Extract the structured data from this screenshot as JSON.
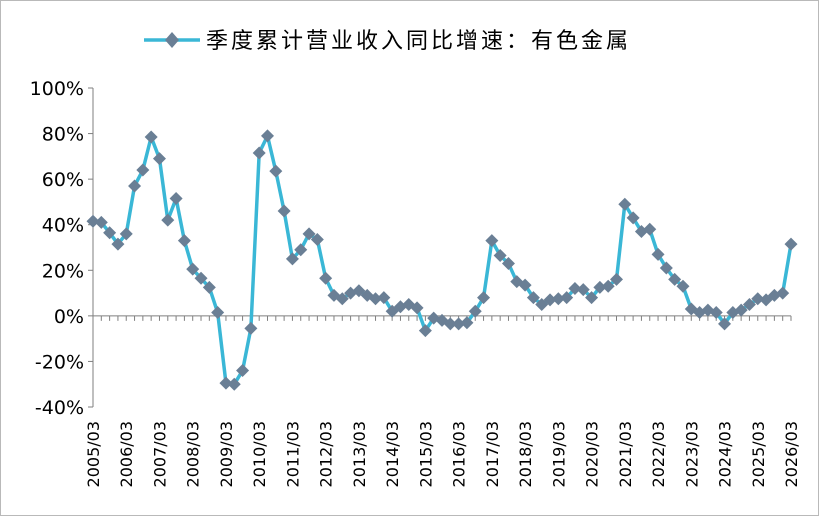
{
  "chart_data": {
    "type": "line",
    "title": "",
    "xlabel": "",
    "ylabel": "",
    "grid": false,
    "legend_position": "top-center",
    "ylim": [
      -40,
      100
    ],
    "y_ticks": [
      "100%",
      "80%",
      "60%",
      "40%",
      "20%",
      "0%",
      "-20%",
      "-40%"
    ],
    "y_tick_values": [
      100,
      80,
      60,
      40,
      20,
      0,
      -20,
      -40
    ],
    "x_ticks": [
      "2005/03",
      "2006/03",
      "2007/03",
      "2008/03",
      "2009/03",
      "2010/03",
      "2011/03",
      "2012/03",
      "2013/03",
      "2014/03",
      "2015/03",
      "2016/03",
      "2017/03",
      "2018/03",
      "2019/03",
      "2020/03",
      "2021/03",
      "2022/03",
      "2023/03",
      "2024/03",
      "2025/03",
      "2026/03"
    ],
    "series": [
      {
        "name": "季度累计营业收入同比增速：有色金属",
        "color": "#3ab7d6",
        "marker_color": "#6a7f95",
        "marker": "diamond",
        "values": [
          41.5,
          41,
          36.5,
          31.5,
          36,
          57,
          64,
          78.5,
          69,
          42,
          51.5,
          33,
          20.5,
          16.5,
          12.5,
          1.5,
          -29.5,
          -30,
          -24,
          -5.5,
          71.5,
          79,
          63.5,
          46,
          25,
          29,
          36,
          33.5,
          16.5,
          9,
          7.5,
          10,
          11,
          9,
          7.5,
          8,
          2,
          4,
          5,
          3.5,
          -6.5,
          -1,
          -2,
          -3.5,
          -3.5,
          -3,
          2,
          8,
          33,
          26.5,
          23,
          15,
          13.5,
          8,
          5,
          7,
          7.5,
          8,
          12,
          11.5,
          8,
          12.5,
          13,
          16,
          49,
          43,
          37,
          38,
          27,
          21,
          16,
          13,
          3,
          1.5,
          2.5,
          1.5,
          -3.5,
          1.5,
          2.5,
          5,
          7.5,
          7,
          9,
          10,
          31.5
        ]
      }
    ]
  }
}
